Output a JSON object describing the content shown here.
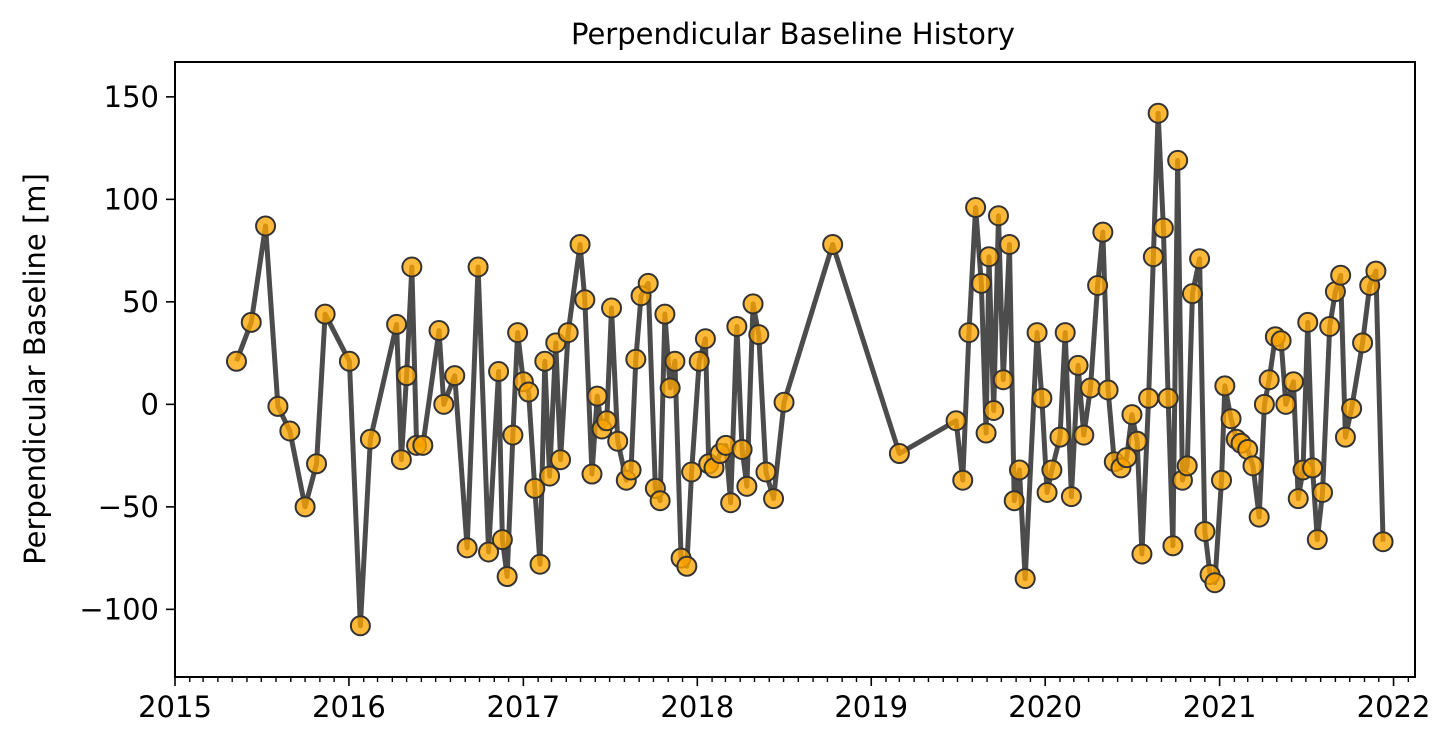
{
  "chart_data": {
    "type": "line",
    "title": "Perpendicular Baseline History",
    "xlabel": "",
    "ylabel": "Perpendicular Baseline [m]",
    "xlim": [
      "2015-01-01",
      "2022-02-15"
    ],
    "ylim": [
      -133,
      167
    ],
    "x_ticks": [
      "2015",
      "2016",
      "2017",
      "2018",
      "2019",
      "2020",
      "2021",
      "2022"
    ],
    "y_ticks": [
      150,
      100,
      50,
      0,
      -50,
      -100
    ],
    "y_tick_labels": [
      "150",
      "100",
      "50",
      "0",
      "−50",
      "−100"
    ],
    "minor_x_ticks": "monthly",
    "grid": false,
    "line_color": "#333333",
    "marker_color": "#ffa500",
    "marker_edge_color": "#333333",
    "series": [
      {
        "points": [
          [
            "2015-05-10",
            21
          ],
          [
            "2015-06-10",
            40
          ],
          [
            "2015-07-10",
            87
          ],
          [
            "2015-08-05",
            -1
          ],
          [
            "2015-08-30",
            -13
          ],
          [
            "2015-10-01",
            -50
          ],
          [
            "2015-10-25",
            -29
          ],
          [
            "2015-11-12",
            44
          ],
          [
            "2016-01-02",
            21
          ],
          [
            "2016-01-25",
            -108
          ],
          [
            "2016-02-15",
            -17
          ],
          [
            "2016-04-10",
            39
          ],
          [
            "2016-04-20",
            -27
          ],
          [
            "2016-05-01",
            14
          ],
          [
            "2016-05-12",
            67
          ],
          [
            "2016-05-22",
            -20
          ],
          [
            "2016-06-04",
            -20
          ],
          [
            "2016-07-08",
            36
          ],
          [
            "2016-07-18",
            0
          ],
          [
            "2016-08-10",
            14
          ],
          [
            "2016-09-05",
            -70
          ],
          [
            "2016-09-28",
            67
          ],
          [
            "2016-10-20",
            -72
          ],
          [
            "2016-11-10",
            16
          ],
          [
            "2016-11-18",
            -66
          ],
          [
            "2016-11-28",
            -84
          ],
          [
            "2016-12-10",
            -15
          ],
          [
            "2016-12-20",
            35
          ],
          [
            "2017-01-01",
            11
          ],
          [
            "2017-01-12",
            6
          ],
          [
            "2017-01-25",
            -41
          ],
          [
            "2017-02-05",
            -78
          ],
          [
            "2017-02-15",
            21
          ],
          [
            "2017-02-25",
            -35
          ],
          [
            "2017-03-10",
            30
          ],
          [
            "2017-03-20",
            -27
          ],
          [
            "2017-04-05",
            35
          ],
          [
            "2017-04-30",
            78
          ],
          [
            "2017-05-10",
            51
          ],
          [
            "2017-05-25",
            -34
          ],
          [
            "2017-06-05",
            4
          ],
          [
            "2017-06-15",
            -12
          ],
          [
            "2017-06-25",
            -8
          ],
          [
            "2017-07-05",
            47
          ],
          [
            "2017-07-18",
            -18
          ],
          [
            "2017-08-05",
            -37
          ],
          [
            "2017-08-15",
            -32
          ],
          [
            "2017-08-25",
            22
          ],
          [
            "2017-09-05",
            53
          ],
          [
            "2017-09-20",
            59
          ],
          [
            "2017-10-05",
            -41
          ],
          [
            "2017-10-15",
            -47
          ],
          [
            "2017-10-25",
            44
          ],
          [
            "2017-11-05",
            8
          ],
          [
            "2017-11-15",
            21
          ],
          [
            "2017-11-28",
            -75
          ],
          [
            "2017-12-10",
            -79
          ],
          [
            "2017-12-20",
            -33
          ],
          [
            "2018-01-05",
            21
          ],
          [
            "2018-01-18",
            32
          ],
          [
            "2018-01-25",
            -29
          ],
          [
            "2018-02-05",
            -31
          ],
          [
            "2018-02-18",
            -24
          ],
          [
            "2018-03-02",
            -20
          ],
          [
            "2018-03-12",
            -48
          ],
          [
            "2018-03-25",
            38
          ],
          [
            "2018-04-05",
            -22
          ],
          [
            "2018-04-15",
            -40
          ],
          [
            "2018-04-28",
            49
          ],
          [
            "2018-05-10",
            34
          ],
          [
            "2018-05-25",
            -33
          ],
          [
            "2018-06-10",
            -46
          ],
          [
            "2018-07-02",
            1
          ],
          [
            "2018-10-12",
            78
          ],
          [
            "2019-03-01",
            -24
          ],
          [
            "2019-06-28",
            -8
          ],
          [
            "2019-07-12",
            -37
          ],
          [
            "2019-07-25",
            35
          ],
          [
            "2019-08-08",
            96
          ],
          [
            "2019-08-20",
            59
          ],
          [
            "2019-08-30",
            -14
          ],
          [
            "2019-09-05",
            72
          ],
          [
            "2019-09-15",
            -3
          ],
          [
            "2019-09-25",
            92
          ],
          [
            "2019-10-05",
            12
          ],
          [
            "2019-10-18",
            78
          ],
          [
            "2019-10-28",
            -47
          ],
          [
            "2019-11-08",
            -32
          ],
          [
            "2019-11-20",
            -85
          ],
          [
            "2019-12-15",
            35
          ],
          [
            "2019-12-25",
            3
          ],
          [
            "2020-01-05",
            -43
          ],
          [
            "2020-01-15",
            -32
          ],
          [
            "2020-02-01",
            -16
          ],
          [
            "2020-02-12",
            35
          ],
          [
            "2020-02-25",
            -45
          ],
          [
            "2020-03-10",
            19
          ],
          [
            "2020-03-22",
            -15
          ],
          [
            "2020-04-05",
            8
          ],
          [
            "2020-04-20",
            58
          ],
          [
            "2020-05-01",
            84
          ],
          [
            "2020-05-12",
            7
          ],
          [
            "2020-05-25",
            -28
          ],
          [
            "2020-06-08",
            -31
          ],
          [
            "2020-06-20",
            -26
          ],
          [
            "2020-07-01",
            -5
          ],
          [
            "2020-07-12",
            -18
          ],
          [
            "2020-07-22",
            -73
          ],
          [
            "2020-08-05",
            3
          ],
          [
            "2020-08-15",
            72
          ],
          [
            "2020-08-25",
            142
          ],
          [
            "2020-09-05",
            86
          ],
          [
            "2020-09-15",
            3
          ],
          [
            "2020-09-25",
            -69
          ],
          [
            "2020-10-05",
            119
          ],
          [
            "2020-10-15",
            -37
          ],
          [
            "2020-10-25",
            -30
          ],
          [
            "2020-11-05",
            54
          ],
          [
            "2020-11-20",
            71
          ],
          [
            "2020-12-01",
            -62
          ],
          [
            "2020-12-12",
            -83
          ],
          [
            "2020-12-22",
            -87
          ],
          [
            "2021-01-05",
            -37
          ],
          [
            "2021-01-12",
            9
          ],
          [
            "2021-01-25",
            -7
          ],
          [
            "2021-02-05",
            -17
          ],
          [
            "2021-02-15",
            -19
          ],
          [
            "2021-03-01",
            -22
          ],
          [
            "2021-03-12",
            -30
          ],
          [
            "2021-03-25",
            -55
          ],
          [
            "2021-04-05",
            0
          ],
          [
            "2021-04-15",
            12
          ],
          [
            "2021-04-28",
            33
          ],
          [
            "2021-05-10",
            31
          ],
          [
            "2021-05-20",
            0
          ],
          [
            "2021-06-05",
            11
          ],
          [
            "2021-06-15",
            -46
          ],
          [
            "2021-06-25",
            -32
          ],
          [
            "2021-07-05",
            40
          ],
          [
            "2021-07-15",
            -31
          ],
          [
            "2021-07-25",
            -66
          ],
          [
            "2021-08-05",
            -43
          ],
          [
            "2021-08-20",
            38
          ],
          [
            "2021-09-01",
            55
          ],
          [
            "2021-09-12",
            63
          ],
          [
            "2021-09-22",
            -16
          ],
          [
            "2021-10-05",
            -2
          ],
          [
            "2021-10-28",
            30
          ],
          [
            "2021-11-12",
            58
          ],
          [
            "2021-11-25",
            65
          ],
          [
            "2021-12-10",
            -67
          ]
        ]
      }
    ]
  }
}
